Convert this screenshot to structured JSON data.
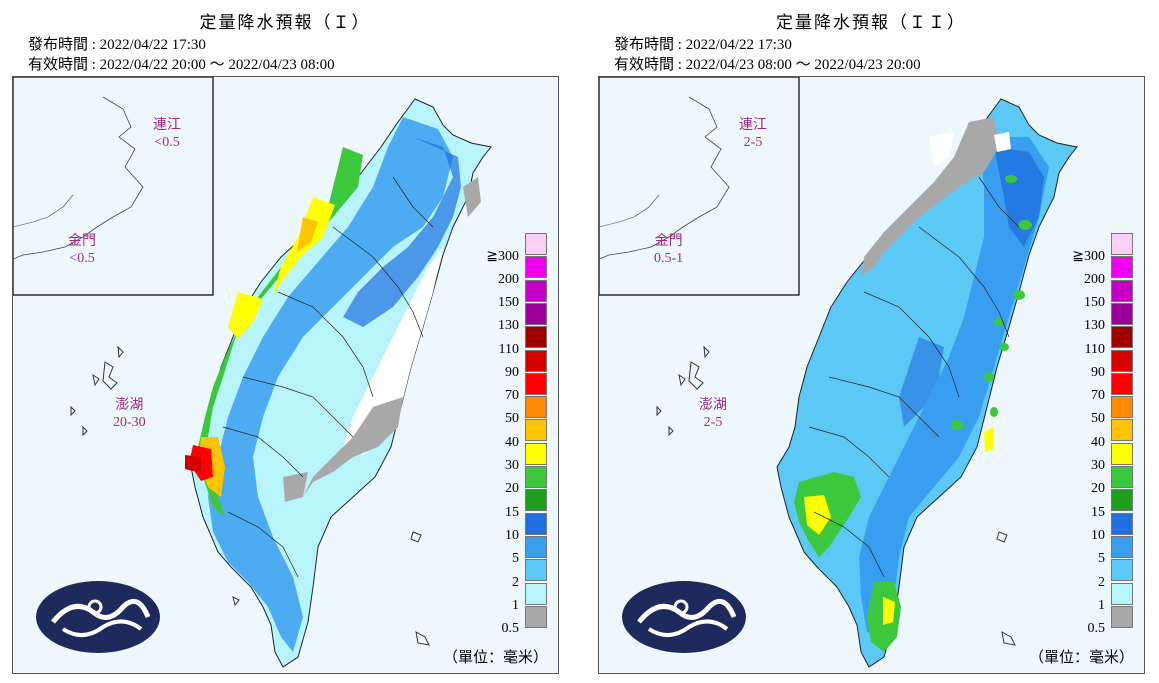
{
  "panels": [
    {
      "title": "定量降水預報（Ｉ）",
      "issued": "發布時間 : 2022/04/22 17:30",
      "valid": "有效時間 : 2022/04/22 20:00 ～ 2022/04/23 08:00",
      "matsu": {
        "name": "連江",
        "value": "<0.5"
      },
      "kinmen": {
        "name": "金門",
        "value": "<0.5"
      },
      "penghu": {
        "name": "澎湖",
        "value": "20-30"
      },
      "unit": "（單位：毫米）"
    },
    {
      "title": "定量降水預報（ＩＩ）",
      "issued": "發布時間 : 2022/04/22 17:30",
      "valid": "有效時間 : 2022/04/23 08:00 ～ 2022/04/23 20:00",
      "matsu": {
        "name": "連江",
        "value": "2-5"
      },
      "kinmen": {
        "name": "金門",
        "value": "0.5-1"
      },
      "penghu": {
        "name": "澎湖",
        "value": "2-5"
      },
      "unit": "（單位：毫米）"
    }
  ],
  "legend": {
    "labels": [
      "≧300",
      "200",
      "150",
      "130",
      "110",
      "90",
      "70",
      "50",
      "40",
      "30",
      "20",
      "15",
      "10",
      "5",
      "2",
      "1",
      "0.5"
    ],
    "colors": [
      "#fbd0f4",
      "#f200f2",
      "#c400c4",
      "#9b009b",
      "#a00000",
      "#d40000",
      "#ff0000",
      "#ff8a00",
      "#ffc400",
      "#ffff00",
      "#3cc83c",
      "#1ea01e",
      "#1f6fe0",
      "#3a9ef0",
      "#5cc8f5",
      "#b8f4fc",
      "#a8a8a8"
    ]
  },
  "colors": {
    "sea": "#eef8fc",
    "land_light": "#ffffff",
    "label_magenta": "#a0287a",
    "logo_navy": "#1e2a5c"
  }
}
